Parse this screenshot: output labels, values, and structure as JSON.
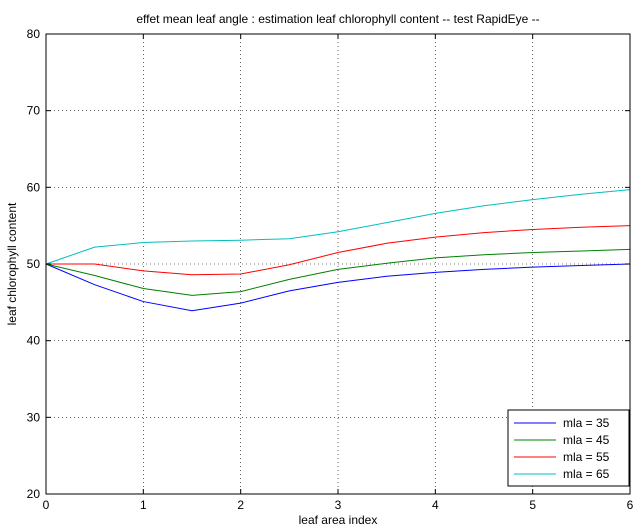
{
  "chart_data": {
    "type": "line",
    "title": "effet mean leaf angle : estimation leaf chlorophyll content -- test RapidEye --",
    "xlabel": "leaf area index",
    "ylabel": "leaf chlorophyll content",
    "xlim": [
      0,
      6
    ],
    "ylim": [
      20,
      80
    ],
    "xticks": [
      0,
      1,
      2,
      3,
      4,
      5,
      6
    ],
    "yticks": [
      20,
      30,
      40,
      50,
      60,
      70,
      80
    ],
    "grid": true,
    "legend_position": "bottom-right",
    "x": [
      0,
      0.5,
      1,
      1.5,
      2,
      2.5,
      3,
      3.5,
      4,
      4.5,
      5,
      5.5,
      6
    ],
    "series": [
      {
        "name": "mla = 35",
        "color": "#0000ff",
        "values": [
          50,
          47.3,
          45.1,
          43.9,
          44.9,
          46.5,
          47.6,
          48.4,
          48.9,
          49.3,
          49.6,
          49.8,
          50.0
        ]
      },
      {
        "name": "mla = 45",
        "color": "#008000",
        "values": [
          50,
          48.5,
          46.8,
          45.9,
          46.4,
          48.0,
          49.3,
          50.1,
          50.8,
          51.2,
          51.5,
          51.7,
          51.9
        ]
      },
      {
        "name": "mla = 55",
        "color": "#ff0000",
        "values": [
          50,
          50.0,
          49.1,
          48.6,
          48.7,
          49.9,
          51.5,
          52.7,
          53.5,
          54.1,
          54.5,
          54.8,
          55.0
        ]
      },
      {
        "name": "mla = 65",
        "color": "#00bfbf",
        "values": [
          50,
          52.2,
          52.8,
          53.0,
          53.1,
          53.3,
          54.2,
          55.4,
          56.6,
          57.6,
          58.4,
          59.1,
          59.7
        ]
      }
    ]
  }
}
